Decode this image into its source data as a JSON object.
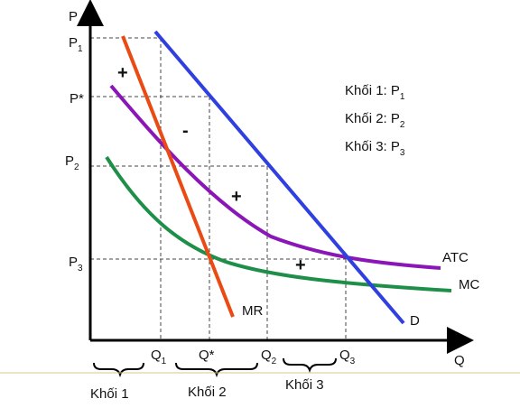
{
  "axes": {
    "y_label": "P",
    "x_label": "Q"
  },
  "price_ticks": [
    {
      "base": "P",
      "sub": "1"
    },
    {
      "base": "P*",
      "sub": ""
    },
    {
      "base": "P",
      "sub": "2"
    },
    {
      "base": "P",
      "sub": "3"
    }
  ],
  "quantity_ticks": [
    {
      "base": "Q",
      "sub": "1"
    },
    {
      "base": "Q*",
      "sub": ""
    },
    {
      "base": "Q",
      "sub": "2"
    },
    {
      "base": "Q",
      "sub": "3"
    }
  ],
  "curves": {
    "atc": {
      "label": "ATC",
      "color": "#8a16b8"
    },
    "mc": {
      "label": "MC",
      "color": "#1e8f48"
    },
    "mr": {
      "label": "MR",
      "color": "#ea4a14"
    },
    "d": {
      "label": "D",
      "color": "#2f3fe0"
    }
  },
  "region_signs": [
    "+",
    "-",
    "+",
    "+"
  ],
  "legend": [
    {
      "text": "Khối 1: P",
      "sub": "1"
    },
    {
      "text": "Khối 2: P",
      "sub": "2"
    },
    {
      "text": "Khối 3: P",
      "sub": "3"
    }
  ],
  "blocks": [
    "Khối 1",
    "Khối 2",
    "Khối 3"
  ],
  "colors": {
    "axis": "#000000",
    "guide": "#444444",
    "divider": "#d9c58a"
  }
}
